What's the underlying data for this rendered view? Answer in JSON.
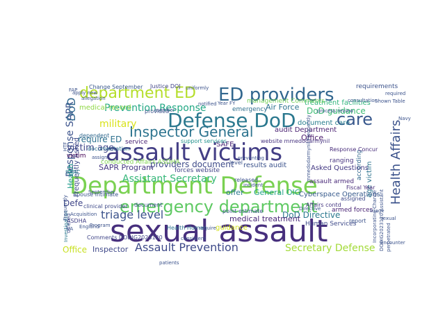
{
  "words": [
    {
      "text": "sexual assault",
      "color": "#472f7d"
    },
    {
      "text": "Department Defense",
      "color": "#7ad151"
    },
    {
      "text": "assault victims",
      "color": "#433e85"
    },
    {
      "text": "Defense DoD",
      "color": "#2a788e"
    },
    {
      "text": "ED providers",
      "color": "#31668e"
    },
    {
      "text": "emergency department",
      "color": "#5ec962"
    },
    {
      "text": "department ED",
      "color": "#b5de2b"
    },
    {
      "text": "Inspector General",
      "color": "#2c738e"
    },
    {
      "text": "care",
      "color": "#38588c"
    },
    {
      "text": "Health Affairs",
      "color": "#3b528b"
    },
    {
      "text": "Assault Prevention",
      "color": "#3e4a89"
    },
    {
      "text": "Prevention Response",
      "color": "#22a884"
    },
    {
      "text": "Assistant Secretary",
      "color": "#35b779"
    },
    {
      "text": "Secretary Defense",
      "color": "#a2da37"
    },
    {
      "text": "military",
      "color": "#d8e219"
    },
    {
      "text": "DoD guidance",
      "color": "#3dbc74"
    },
    {
      "text": "triage level",
      "color": "#3b528b"
    },
    {
      "text": "Response SAPR",
      "color": "#3b528b"
    },
    {
      "text": "DoD",
      "color": "#31688e"
    },
    {
      "text": "providers document",
      "color": "#3e4a89"
    },
    {
      "text": "Air Force",
      "color": "#2c728e"
    },
    {
      "text": "DoD Directive",
      "color": "#2a788e"
    },
    {
      "text": "medical treatment",
      "color": "#482677"
    },
    {
      "text": "SAPR Program",
      "color": "#453781"
    },
    {
      "text": "Health",
      "color": "#1f9a8a"
    },
    {
      "text": "require ED",
      "color": "#2d708e"
    },
    {
      "text": "victim age",
      "color": "#404688"
    },
    {
      "text": "Inspector",
      "color": "#3f4889"
    },
    {
      "text": "Office",
      "color": "#c8e020"
    },
    {
      "text": "General OIG",
      "color": "#20a386"
    },
    {
      "text": "Cyberspace Operations",
      "color": "#375a8c"
    },
    {
      "text": "Asked Questions",
      "color": "#443983"
    },
    {
      "text": "audit Department",
      "color": "#481f70"
    },
    {
      "text": "document care",
      "color": "#287d8e"
    },
    {
      "text": "treatment facilities",
      "color": "#2fb47c"
    },
    {
      "text": "management Comments",
      "color": "#73d056"
    },
    {
      "text": "medical record",
      "color": "#8fd744"
    },
    {
      "text": "service",
      "color": "#482173"
    },
    {
      "text": "results audit",
      "color": "#3b528b"
    },
    {
      "text": "conducted Affairs ASDHA",
      "color": "#7fd34e"
    },
    {
      "text": "Frequently Asked",
      "color": "#3e4a89"
    },
    {
      "text": "SAFE",
      "color": "#482475"
    },
    {
      "text": "Office",
      "color": "#481a6c"
    },
    {
      "text": "offer",
      "color": "#2a788e"
    },
    {
      "text": "requirements",
      "color": "#3b528b"
    },
    {
      "text": "emergency",
      "color": "#2e6f8e"
    },
    {
      "text": "victim",
      "color": "#440154"
    },
    {
      "text": "SARC",
      "color": "#287c8e"
    },
    {
      "text": "documentation",
      "color": "#2d708e"
    },
    {
      "text": "dependent",
      "color": "#31688e"
    },
    {
      "text": "provided",
      "color": "#3b528b"
    },
    {
      "text": "support services",
      "color": "#21918c"
    },
    {
      "text": "level",
      "color": "#3b528b"
    },
    {
      "text": "assault armed",
      "color": "#482878"
    },
    {
      "text": "ranging",
      "color": "#46337f"
    },
    {
      "text": "according",
      "color": "#31688e"
    },
    {
      "text": "age victim",
      "color": "#2c738e"
    },
    {
      "text": "Human Services",
      "color": "#3e4a89"
    },
    {
      "text": "armed forces",
      "color": "#482173"
    },
    {
      "text": "guidance",
      "color": "#d2e21b"
    },
    {
      "text": "ASDHA",
      "color": "#424186"
    },
    {
      "text": "Comments DODIG2023120",
      "color": "#404688"
    },
    {
      "text": "Response Concur",
      "color": "#472c7a"
    },
    {
      "text": "forces website",
      "color": "#414487"
    },
    {
      "text": "released",
      "color": "#3b528b"
    },
    {
      "text": "Change September",
      "color": "#38588c"
    },
    {
      "text": "Justice DOJ",
      "color": "#414487"
    },
    {
      "text": "clinical provider",
      "color": "#3e4a89"
    },
    {
      "text": "Spouse intimate",
      "color": "#3b528b"
    },
    {
      "text": "Defe",
      "color": "#404688"
    },
    {
      "text": "Fiscal Year",
      "color": "#472c7a"
    },
    {
      "text": "website mmedodarmynil",
      "color": "#46337f"
    },
    {
      "text": "point estimate",
      "color": "#3b528b"
    },
    {
      "text": "Affairs contd",
      "color": "#453781"
    },
    {
      "text": "assigned",
      "color": "#3e4a89"
    },
    {
      "text": "report",
      "color": "#3b528b"
    },
    {
      "text": "offered",
      "color": "#3e4a89"
    },
    {
      "text": "Health Human",
      "color": "#2c728e"
    },
    {
      "text": "document",
      "color": "#3b528b"
    },
    {
      "text": "notified",
      "color": "#3b528b"
    },
    {
      "text": "Year FY",
      "color": "#3b528b"
    },
    {
      "text": "uniformly",
      "color": "#3b528b"
    },
    {
      "text": "FAP",
      "color": "#3b528b"
    },
    {
      "text": "member",
      "color": "#3b528b"
    },
    {
      "text": "Shown Table",
      "color": "#3b528b"
    },
    {
      "text": "required",
      "color": "#3b528b"
    },
    {
      "text": "triage",
      "color": "#3b528b"
    },
    {
      "text": "consistent",
      "color": "#3b528b"
    },
    {
      "text": "require",
      "color": "#3b528b"
    },
    {
      "text": "Acquisition",
      "color": "#3b528b"
    },
    {
      "text": "Investigation",
      "color": "#2a788e"
    },
    {
      "text": "VA",
      "color": "#3b528b"
    },
    {
      "text": "Program",
      "color": "#3b528b"
    },
    {
      "text": "Incorporating Change",
      "color": "#3b528b"
    },
    {
      "text": "DODIG2023120 Assistant",
      "color": "#3b528b"
    },
    {
      "text": "Frequently",
      "color": "#3b528b"
    },
    {
      "text": "process review",
      "color": "#3b528b"
    },
    {
      "text": "patients",
      "color": "#3b528b"
    },
    {
      "text": "sexual",
      "color": "#3b528b"
    },
    {
      "text": "Encounter",
      "color": "#3b528b"
    },
    {
      "text": "Directive",
      "color": "#3b528b"
    },
    {
      "text": "apply new",
      "color": "#3b528b"
    },
    {
      "text": "September",
      "color": "#3b528b"
    },
    {
      "text": "England",
      "color": "#3b528b"
    },
    {
      "text": "HTF",
      "color": "#3b528b"
    },
    {
      "text": "allegation",
      "color": "#3b528b"
    },
    {
      "text": "assign",
      "color": "#3b528b"
    },
    {
      "text": "Navy",
      "color": "#3b528b"
    },
    {
      "text": "perpetrated",
      "color": "#3b528b"
    },
    {
      "text": "incident",
      "color": "#3b528b"
    },
    {
      "text": "preventing",
      "color": "#3b528b"
    },
    {
      "text": "consultation",
      "color": "#3b528b"
    },
    {
      "text": "mmedodarmynil Frequently",
      "color": "#3b528b"
    }
  ]
}
